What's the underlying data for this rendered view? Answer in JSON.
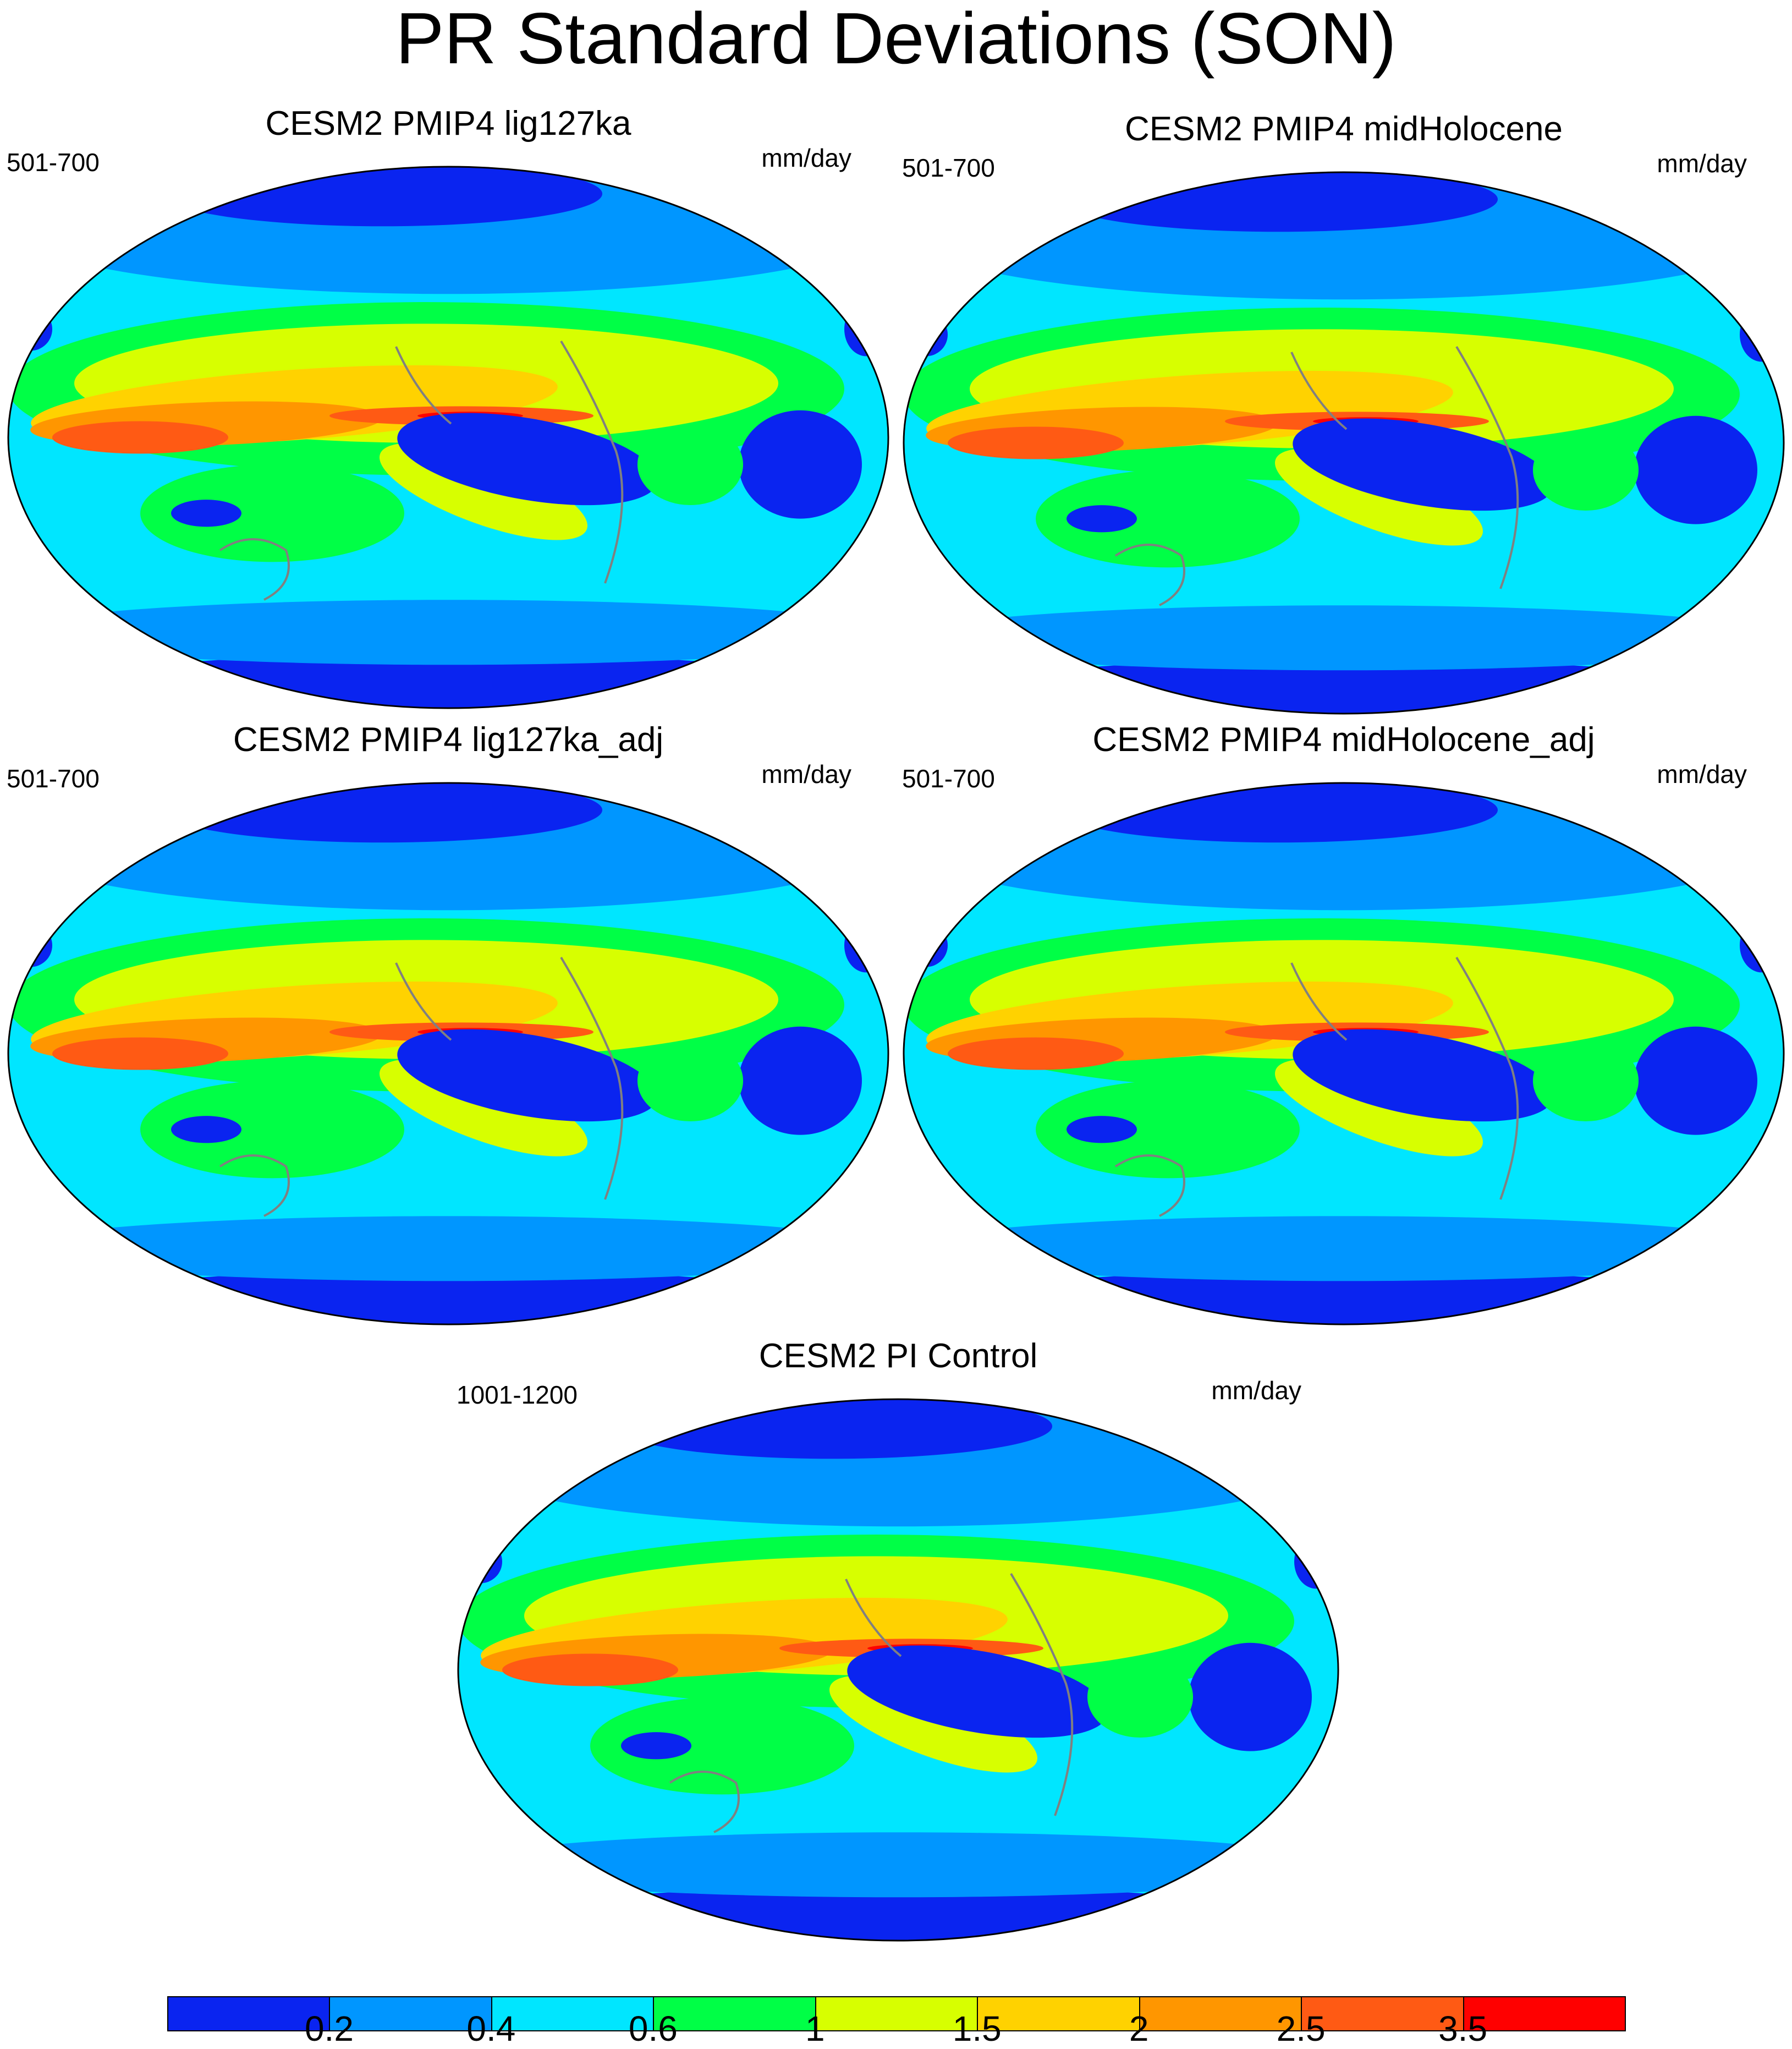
{
  "title": "PR Standard Deviations (SON)",
  "panels": [
    {
      "title": "CESM2 PMIP4 lig127ka",
      "period": "501-700",
      "units": "mm/day"
    },
    {
      "title": "CESM2 PMIP4 midHolocene",
      "period": "501-700",
      "units": "mm/day"
    },
    {
      "title": "CESM2 PMIP4 lig127ka_adj",
      "period": "501-700",
      "units": "mm/day"
    },
    {
      "title": "CESM2 PMIP4 midHolocene_adj",
      "period": "501-700",
      "units": "mm/day"
    },
    {
      "title": "CESM2 PI Control",
      "period": "1001-1200",
      "units": "mm/day"
    }
  ],
  "colorbar": {
    "colors": [
      "#0a24f0",
      "#0096ff",
      "#00e6ff",
      "#00ff46",
      "#d7ff00",
      "#ffd200",
      "#ff9600",
      "#ff5a14",
      "#ff0000"
    ],
    "labels": [
      "0.2",
      "0.4",
      "0.6",
      "1",
      "1.5",
      "2",
      "2.5",
      "3.5"
    ]
  }
}
